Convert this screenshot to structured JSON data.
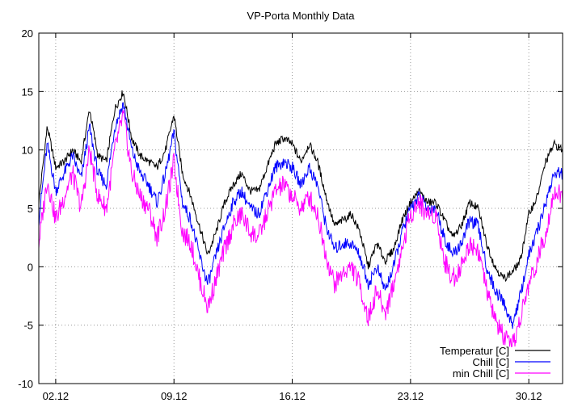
{
  "chart_data": {
    "type": "line",
    "title": "VP-Porta Monthly Data",
    "xlabel": "",
    "ylabel": "",
    "x_unit": "day of month",
    "xlim": [
      1,
      32
    ],
    "ylim": [
      -10,
      20
    ],
    "yticks": [
      -10,
      -5,
      0,
      5,
      10,
      15,
      20
    ],
    "xticks": [
      {
        "value": 2,
        "label": "02.12"
      },
      {
        "value": 9,
        "label": "09.12"
      },
      {
        "value": 16,
        "label": "16.12"
      },
      {
        "value": 23,
        "label": "23.12"
      },
      {
        "value": 30,
        "label": "30.12"
      }
    ],
    "grid": true,
    "legend_position": "bottom-right",
    "x": [
      1.0,
      1.5,
      2.0,
      2.5,
      3.0,
      3.5,
      4.0,
      4.5,
      5.0,
      5.5,
      6.0,
      6.5,
      7.0,
      7.5,
      8.0,
      8.5,
      9.0,
      9.5,
      10.0,
      10.5,
      11.0,
      11.5,
      12.0,
      12.5,
      13.0,
      13.5,
      14.0,
      14.5,
      15.0,
      15.5,
      16.0,
      16.5,
      17.0,
      17.5,
      18.0,
      18.5,
      19.0,
      19.5,
      20.0,
      20.5,
      21.0,
      21.5,
      22.0,
      22.5,
      23.0,
      23.5,
      24.0,
      24.5,
      25.0,
      25.5,
      26.0,
      26.5,
      27.0,
      27.5,
      28.0,
      28.5,
      29.0,
      29.5,
      30.0,
      30.5,
      31.0,
      31.5,
      32.0
    ],
    "series": [
      {
        "name": "Temperatur [C]",
        "color": "#000000",
        "values": [
          5.5,
          12.0,
          8.5,
          9.0,
          10.0,
          9.0,
          13.5,
          9.5,
          9.0,
          13.5,
          15.0,
          11.0,
          9.5,
          9.0,
          8.5,
          10.0,
          13.0,
          8.0,
          6.0,
          3.5,
          1.0,
          3.0,
          5.5,
          7.0,
          8.0,
          6.5,
          6.5,
          8.5,
          10.5,
          11.0,
          10.5,
          9.0,
          10.5,
          9.0,
          6.0,
          3.5,
          4.0,
          4.5,
          3.0,
          0.0,
          2.0,
          0.5,
          1.5,
          4.0,
          5.5,
          6.5,
          5.5,
          5.5,
          4.0,
          2.5,
          3.5,
          5.5,
          5.0,
          2.0,
          0.0,
          -1.0,
          -0.5,
          0.5,
          4.5,
          6.0,
          9.0,
          10.5,
          10.0
        ]
      },
      {
        "name": "Chill [C]",
        "color": "#0000ff",
        "values": [
          4.0,
          10.5,
          6.5,
          8.0,
          9.5,
          7.5,
          12.0,
          8.0,
          7.0,
          12.0,
          14.0,
          10.0,
          8.0,
          7.0,
          5.5,
          8.0,
          11.5,
          5.5,
          4.0,
          1.0,
          -1.5,
          1.0,
          3.5,
          5.5,
          6.5,
          5.0,
          4.5,
          6.5,
          8.5,
          9.0,
          8.5,
          7.0,
          8.5,
          7.0,
          3.5,
          1.5,
          2.0,
          2.0,
          1.0,
          -1.5,
          0.0,
          -2.0,
          0.0,
          3.0,
          5.0,
          6.0,
          5.0,
          5.0,
          2.5,
          1.0,
          2.0,
          4.0,
          3.5,
          0.0,
          -2.0,
          -3.0,
          -5.0,
          -2.5,
          1.0,
          3.0,
          5.5,
          8.0,
          8.0
        ]
      },
      {
        "name": "min Chill [C]",
        "color": "#ff00ff",
        "values": [
          2.0,
          7.5,
          4.0,
          6.0,
          8.0,
          5.0,
          10.0,
          6.0,
          5.0,
          10.0,
          13.0,
          8.0,
          6.0,
          5.0,
          2.5,
          5.0,
          9.0,
          3.0,
          2.0,
          -1.0,
          -3.5,
          -1.0,
          1.5,
          3.5,
          4.5,
          3.0,
          2.5,
          4.5,
          6.5,
          7.0,
          6.0,
          5.0,
          6.0,
          4.5,
          1.0,
          -1.5,
          -0.5,
          0.0,
          -1.5,
          -4.5,
          -2.0,
          -4.0,
          -1.5,
          1.5,
          4.5,
          5.5,
          4.5,
          4.5,
          0.5,
          -1.0,
          0.0,
          2.0,
          1.5,
          -2.0,
          -4.5,
          -6.0,
          -7.0,
          -4.5,
          -1.5,
          0.5,
          3.0,
          6.5,
          6.0
        ]
      }
    ]
  }
}
